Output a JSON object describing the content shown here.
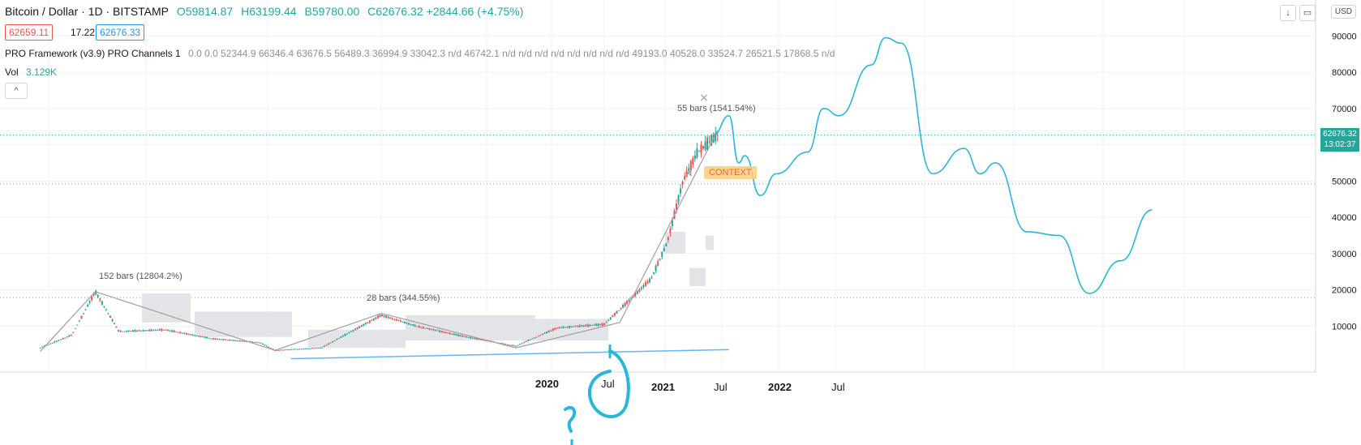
{
  "header": {
    "title": "Bitcoin / Dollar · 1D · BITSTAMP",
    "open": "O59814.87",
    "high": "H63199.44",
    "bid": "B59780.00",
    "close": "C62676.32 +2844.66 (+4.75%)",
    "price_red": "62659.11",
    "spread": "17.22",
    "price_blue": "62676.33",
    "indicator_name": "PRO Framework (v3.9) PRO Channels 1",
    "indicator_values": "0.0  0.0  52344.9  66346.4  63676.5  56489.3  36994.9  33042.3  n/d  46742.1  n/d n/d n/d n/d n/d n/d n/d n/d  49193.0  40528.0  33524.7  26521.5  17868.5  n/d",
    "vol_label": "Vol",
    "vol_value": "3.129K",
    "collapse_icon": "^"
  },
  "toolbar": {
    "down_arrow": "↓",
    "restore": "▭",
    "currency": "USD"
  },
  "price_tag": {
    "price": "62676.32",
    "countdown": "13:02:37"
  },
  "context_label": "CONTEXT",
  "annotations": {
    "a1": "152 bars (12804.2%)",
    "a2": "28 bars (344.55%)",
    "a3": "55 bars (1541.54%)"
  },
  "x_axis": [
    {
      "label": "2020",
      "bold": true
    },
    {
      "label": "Jul",
      "bold": false
    },
    {
      "label": "2021",
      "bold": true
    },
    {
      "label": "Jul",
      "bold": false
    },
    {
      "label": "2022",
      "bold": true
    },
    {
      "label": "Jul",
      "bold": false
    }
  ],
  "colors": {
    "up": "#26a69a",
    "down": "#ef5350",
    "drawing": "#29b6d8",
    "grid": "#eef0f4"
  },
  "chart_data": {
    "type": "line",
    "title": "Bitcoin / Dollar · 1D · BITSTAMP",
    "y_ticks": [
      10000,
      20000,
      30000,
      40000,
      50000,
      60000,
      70000,
      80000,
      90000
    ],
    "ylim": [
      0,
      95000
    ],
    "series": [
      {
        "name": "",
        "values": [
          [
            "2017-09",
            4000
          ],
          [
            "2017-11",
            7500
          ],
          [
            "2017-12-17",
            19500
          ],
          [
            "2018-02",
            8500
          ],
          [
            "2018-05",
            9000
          ],
          [
            "2018-08",
            6500
          ],
          [
            "2018-11",
            5500
          ],
          [
            "2018-12",
            3300
          ],
          [
            "2019-03",
            4000
          ],
          [
            "2019-06-26",
            13000
          ],
          [
            "2019-09",
            10000
          ],
          [
            "2019-12",
            7200
          ],
          [
            "2020-03-13",
            4500
          ],
          [
            "2020-06",
            9500
          ],
          [
            "2020-09",
            10500
          ],
          [
            "2020-12",
            23000
          ],
          [
            "2021-01",
            33000
          ],
          [
            "2021-02",
            50000
          ],
          [
            "2021-03",
            58000
          ],
          [
            "2021-04-09",
            62676
          ]
        ]
      },
      {
        "name": "",
        "values": [
          [
            "2021-04",
            62676
          ],
          [
            "2021-05",
            68000
          ],
          [
            "2021-05-20",
            55000
          ],
          [
            "2021-06",
            57000
          ],
          [
            "2021-07",
            46000
          ],
          [
            "2021-08",
            52000
          ],
          [
            "2021-10",
            58000
          ],
          [
            "2021-11",
            70000
          ],
          [
            "2021-12",
            68000
          ],
          [
            "2022-02",
            82000
          ],
          [
            "2022-03",
            89500
          ],
          [
            "2022-04",
            88000
          ],
          [
            "2022-06",
            52000
          ],
          [
            "2022-08",
            59000
          ],
          [
            "2022-09",
            52000
          ],
          [
            "2022-10",
            55000
          ],
          [
            "2022-12",
            36000
          ],
          [
            "2023-02",
            35000
          ],
          [
            "2023-04",
            19000
          ],
          [
            "2023-06",
            28000
          ],
          [
            "2023-08",
            42000
          ]
        ]
      }
    ],
    "current_price": 62676.32
  }
}
